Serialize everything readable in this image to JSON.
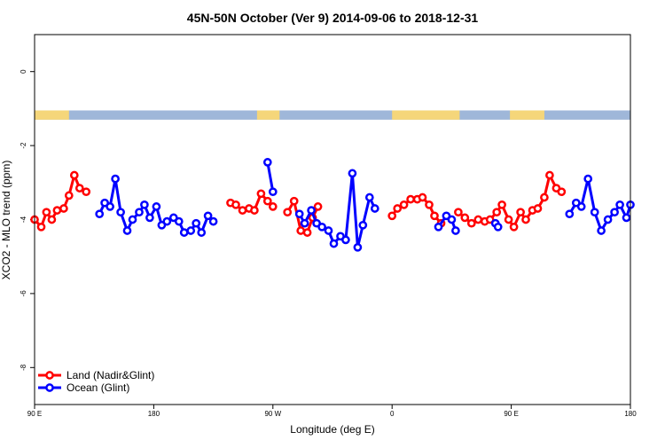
{
  "chart_data": {
    "type": "line",
    "title": "45N-50N October (Ver 9)   2014-09-06 to 2018-12-31",
    "xlabel": "Longitude (deg E)",
    "ylabel": "XCO2 - MLO trend (ppm)",
    "xlim": [
      90,
      540
    ],
    "ylim": [
      -9,
      1
    ],
    "x_ticks": [
      {
        "value": 90,
        "label": "90 E"
      },
      {
        "value": 180,
        "label": "180"
      },
      {
        "value": 270,
        "label": "90 W"
      },
      {
        "value": 360,
        "label": "0"
      },
      {
        "value": 450,
        "label": "90 E"
      },
      {
        "value": 540,
        "label": "180"
      }
    ],
    "y_ticks": [
      {
        "value": 0,
        "label": "0"
      },
      {
        "value": -2,
        "label": "-2"
      },
      {
        "value": -4,
        "label": "-4"
      },
      {
        "value": -6,
        "label": "-6"
      },
      {
        "value": -8,
        "label": "-8"
      }
    ],
    "land_strip": {
      "y_top": -1.05,
      "y_bottom": -1.3,
      "land_color": "#f5d67a",
      "ocean_color": "#9fb7d9"
    },
    "legend": {
      "position": "bottom-left"
    },
    "series": [
      {
        "name": "Land (Nadir&Glint)",
        "color": "#ff0000",
        "segments": [
          [
            [
              90,
              -4.0
            ],
            [
              95,
              -4.2
            ],
            [
              99,
              -3.8
            ],
            [
              103,
              -4.0
            ],
            [
              107,
              -3.75
            ],
            [
              112,
              -3.7
            ],
            [
              116,
              -3.35
            ],
            [
              120,
              -2.8
            ],
            [
              124,
              -3.15
            ],
            [
              129,
              -3.25
            ]
          ],
          [
            [
              238,
              -3.55
            ],
            [
              242,
              -3.6
            ],
            [
              247,
              -3.75
            ],
            [
              252,
              -3.7
            ],
            [
              256,
              -3.75
            ],
            [
              261,
              -3.3
            ],
            [
              266,
              -3.5
            ],
            [
              270,
              -3.65
            ]
          ],
          [
            [
              281,
              -3.8
            ],
            [
              286,
              -3.5
            ],
            [
              291,
              -4.3
            ],
            [
              296,
              -4.35
            ],
            [
              300,
              -3.95
            ],
            [
              304,
              -3.65
            ]
          ],
          [
            [
              360,
              -3.9
            ],
            [
              364,
              -3.7
            ],
            [
              369,
              -3.6
            ],
            [
              374,
              -3.45
            ],
            [
              379,
              -3.45
            ],
            [
              383,
              -3.4
            ],
            [
              388,
              -3.6
            ],
            [
              392,
              -3.9
            ],
            [
              397,
              -4.1
            ]
          ],
          [
            [
              410,
              -3.8
            ],
            [
              415,
              -3.95
            ],
            [
              420,
              -4.1
            ],
            [
              425,
              -4.0
            ],
            [
              430,
              -4.05
            ],
            [
              434,
              -4.0
            ],
            [
              439,
              -3.8
            ],
            [
              443,
              -3.6
            ],
            [
              448,
              -4.0
            ],
            [
              452,
              -4.2
            ],
            [
              457,
              -3.8
            ],
            [
              461,
              -4.0
            ],
            [
              466,
              -3.75
            ],
            [
              470,
              -3.7
            ],
            [
              475,
              -3.4
            ],
            [
              479,
              -2.8
            ],
            [
              484,
              -3.15
            ],
            [
              488,
              -3.25
            ]
          ]
        ]
      },
      {
        "name": "Ocean (Glint)",
        "color": "#0000ff",
        "segments": [
          [
            [
              139,
              -3.85
            ],
            [
              143,
              -3.55
            ],
            [
              147,
              -3.65
            ],
            [
              151,
              -2.9
            ],
            [
              155,
              -3.8
            ],
            [
              160,
              -4.3
            ],
            [
              164,
              -4.0
            ],
            [
              169,
              -3.8
            ],
            [
              173,
              -3.6
            ],
            [
              177,
              -3.95
            ],
            [
              182,
              -3.65
            ],
            [
              186,
              -4.15
            ],
            [
              190,
              -4.05
            ],
            [
              195,
              -3.95
            ],
            [
              199,
              -4.05
            ],
            [
              203,
              -4.35
            ],
            [
              208,
              -4.3
            ],
            [
              212,
              -4.1
            ],
            [
              216,
              -4.35
            ],
            [
              221,
              -3.9
            ],
            [
              225,
              -4.05
            ]
          ],
          [
            [
              266,
              -2.45
            ],
            [
              270,
              -3.25
            ]
          ],
          [
            [
              290,
              -3.85
            ],
            [
              294,
              -4.1
            ],
            [
              299,
              -3.75
            ],
            [
              303,
              -4.1
            ],
            [
              307,
              -4.2
            ],
            [
              312,
              -4.3
            ],
            [
              316,
              -4.65
            ],
            [
              321,
              -4.45
            ],
            [
              325,
              -4.55
            ],
            [
              330,
              -2.75
            ],
            [
              334,
              -4.75
            ],
            [
              338,
              -4.15
            ],
            [
              343,
              -3.4
            ],
            [
              347,
              -3.7
            ]
          ],
          [
            [
              395,
              -4.2
            ],
            [
              401,
              -3.9
            ],
            [
              405,
              -4.0
            ],
            [
              408,
              -4.3
            ]
          ],
          [
            [
              438,
              -4.1
            ],
            [
              440,
              -4.2
            ]
          ],
          [
            [
              494,
              -3.85
            ],
            [
              499,
              -3.55
            ],
            [
              503,
              -3.65
            ],
            [
              508,
              -2.9
            ],
            [
              513,
              -3.8
            ],
            [
              518,
              -4.3
            ],
            [
              523,
              -4.0
            ],
            [
              528,
              -3.8
            ],
            [
              532,
              -3.6
            ],
            [
              537,
              -3.95
            ],
            [
              540,
              -3.6
            ]
          ]
        ]
      }
    ]
  }
}
